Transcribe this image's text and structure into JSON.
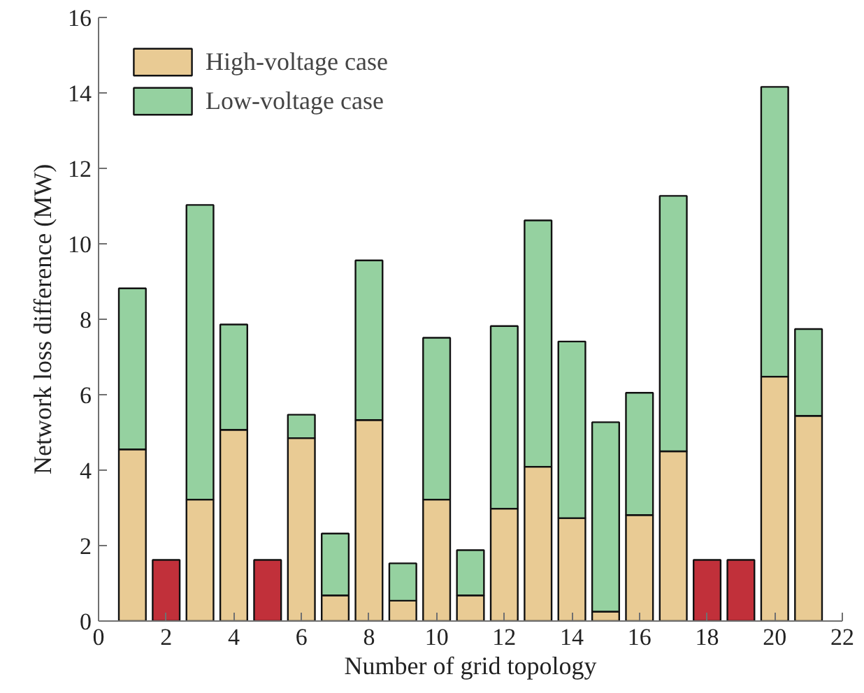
{
  "chart_data": {
    "type": "bar",
    "stacked": true,
    "xlabel": "Number of grid topology",
    "ylabel": "Network loss difference (MW)",
    "x": [
      1,
      2,
      3,
      4,
      5,
      6,
      7,
      8,
      9,
      10,
      11,
      12,
      13,
      14,
      15,
      16,
      17,
      18,
      19,
      20,
      21
    ],
    "series": [
      {
        "name": "High-voltage case",
        "color": "#e9cb94",
        "values": [
          4.55,
          null,
          3.22,
          5.07,
          null,
          4.85,
          0.68,
          5.33,
          0.54,
          3.22,
          0.68,
          2.98,
          4.09,
          2.73,
          0.25,
          2.81,
          4.5,
          null,
          null,
          6.48,
          5.44
        ]
      },
      {
        "name": "Low-voltage case",
        "color": "#95d1a0",
        "values": [
          4.27,
          null,
          7.81,
          2.79,
          null,
          0.62,
          1.64,
          4.23,
          0.99,
          4.29,
          1.2,
          4.84,
          6.53,
          4.68,
          5.02,
          3.24,
          6.77,
          null,
          null,
          7.68,
          2.3
        ]
      },
      {
        "color": "#c1303a",
        "values": [
          null,
          1.62,
          null,
          null,
          1.62,
          null,
          null,
          null,
          null,
          null,
          null,
          null,
          null,
          null,
          null,
          null,
          null,
          1.62,
          1.62,
          null,
          null
        ]
      }
    ],
    "xlim": [
      0,
      22
    ],
    "xticks": [
      0,
      2,
      4,
      6,
      8,
      10,
      12,
      14,
      16,
      18,
      20,
      22
    ],
    "ylim": [
      0,
      16
    ],
    "yticks": [
      0,
      2,
      4,
      6,
      8,
      10,
      12,
      14,
      16
    ],
    "grid": false,
    "legend": "top left"
  }
}
